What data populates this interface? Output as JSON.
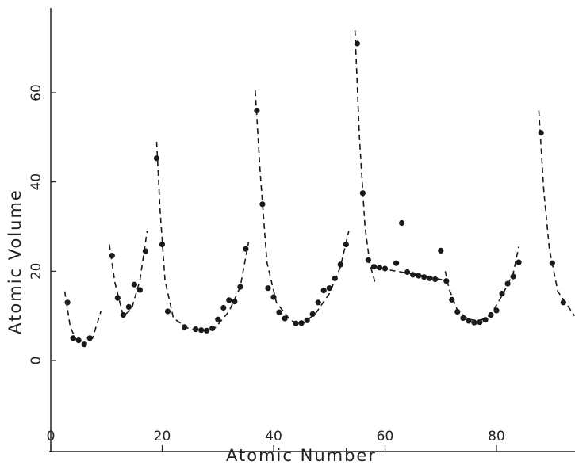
{
  "chart_data": {
    "type": "scatter",
    "title": "",
    "xlabel": "Atomic Number",
    "ylabel": "Atomic Volume",
    "xlim": [
      0,
      94
    ],
    "ylim": [
      0,
      72
    ],
    "grid": false,
    "x_ticks": [
      0,
      20,
      40,
      60,
      80
    ],
    "y_ticks": [
      0,
      20,
      40,
      60
    ],
    "colors": {
      "points": "#1a1a1a",
      "trend": "#1a1a1a",
      "axis": "#222222"
    },
    "points": [
      [
        3,
        13.0
      ],
      [
        4,
        5.0
      ],
      [
        5,
        4.5
      ],
      [
        6,
        3.6
      ],
      [
        7,
        5.0
      ],
      [
        11,
        23.5
      ],
      [
        12,
        14.0
      ],
      [
        13,
        10.2
      ],
      [
        14,
        12.0
      ],
      [
        15,
        17.0
      ],
      [
        16,
        15.8
      ],
      [
        17,
        24.5
      ],
      [
        19,
        45.3
      ],
      [
        20,
        26.0
      ],
      [
        21,
        11.0
      ],
      [
        24,
        7.5
      ],
      [
        26,
        7.0
      ],
      [
        27,
        6.8
      ],
      [
        28,
        6.7
      ],
      [
        29,
        7.2
      ],
      [
        30,
        9.2
      ],
      [
        31,
        11.8
      ],
      [
        32,
        13.5
      ],
      [
        33,
        13.2
      ],
      [
        34,
        16.5
      ],
      [
        35,
        25.0
      ],
      [
        37,
        56.0
      ],
      [
        38,
        35.0
      ],
      [
        39,
        16.2
      ],
      [
        40,
        14.2
      ],
      [
        41,
        10.8
      ],
      [
        42,
        9.4
      ],
      [
        44,
        8.3
      ],
      [
        45,
        8.4
      ],
      [
        46,
        9.0
      ],
      [
        47,
        10.4
      ],
      [
        48,
        13.0
      ],
      [
        49,
        15.7
      ],
      [
        50,
        16.2
      ],
      [
        51,
        18.4
      ],
      [
        52,
        21.5
      ],
      [
        53,
        26.0
      ],
      [
        55,
        71.0
      ],
      [
        56,
        37.5
      ],
      [
        57,
        22.5
      ],
      [
        58,
        21.0
      ],
      [
        59,
        20.8
      ],
      [
        60,
        20.6
      ],
      [
        62,
        21.8
      ],
      [
        63,
        30.8
      ],
      [
        64,
        19.8
      ],
      [
        65,
        19.2
      ],
      [
        66,
        19.0
      ],
      [
        67,
        18.7
      ],
      [
        68,
        18.4
      ],
      [
        69,
        18.2
      ],
      [
        70,
        24.6
      ],
      [
        71,
        17.8
      ],
      [
        72,
        13.6
      ],
      [
        73,
        10.9
      ],
      [
        74,
        9.5
      ],
      [
        75,
        8.9
      ],
      [
        76,
        8.5
      ],
      [
        77,
        8.6
      ],
      [
        78,
        9.1
      ],
      [
        79,
        10.2
      ],
      [
        80,
        11.2
      ],
      [
        81,
        15.0
      ],
      [
        82,
        17.2
      ],
      [
        83,
        18.8
      ],
      [
        84,
        22.0
      ],
      [
        88,
        51.0
      ],
      [
        90,
        21.8
      ],
      [
        92,
        13.0
      ]
    ],
    "trend_segments": [
      [
        [
          2.5,
          15.5
        ],
        [
          3.5,
          7.5
        ],
        [
          4.5,
          4.8
        ],
        [
          6,
          3.6
        ],
        [
          7.5,
          5.0
        ],
        [
          9,
          11.0
        ]
      ],
      [
        [
          10.5,
          26.0
        ],
        [
          11.5,
          17.5
        ],
        [
          13,
          10.0
        ],
        [
          14.5,
          11.5
        ],
        [
          16,
          18.0
        ],
        [
          17.3,
          29.0
        ]
      ],
      [
        [
          19,
          49.0
        ],
        [
          19.6,
          34.0
        ],
        [
          20.5,
          18.0
        ],
        [
          22,
          9.5
        ],
        [
          24.5,
          7.3
        ],
        [
          27,
          6.5
        ],
        [
          29.5,
          7.3
        ],
        [
          32,
          11.0
        ],
        [
          34,
          16.5
        ],
        [
          35.5,
          26.5
        ]
      ],
      [
        [
          36.7,
          60.5
        ],
        [
          37.6,
          42.0
        ],
        [
          38.8,
          22.0
        ],
        [
          40.5,
          13.0
        ],
        [
          43,
          9.0
        ],
        [
          45,
          8.0
        ],
        [
          47.5,
          10.5
        ],
        [
          50,
          15.0
        ],
        [
          52,
          21.0
        ],
        [
          53.5,
          29.0
        ]
      ],
      [
        [
          54.6,
          74.0
        ],
        [
          55.4,
          50.0
        ],
        [
          56.4,
          30.0
        ],
        [
          57.3,
          21.5
        ],
        [
          58.2,
          17.5
        ]
      ],
      [
        [
          57.5,
          21.0
        ],
        [
          62,
          20.0
        ],
        [
          66,
          19.2
        ],
        [
          70.5,
          18.0
        ]
      ],
      [
        [
          70.8,
          20.0
        ],
        [
          71.5,
          16.0
        ],
        [
          73,
          11.2
        ],
        [
          75,
          9.2
        ],
        [
          77,
          8.9
        ],
        [
          79,
          10.3
        ],
        [
          81,
          14.5
        ],
        [
          83,
          19.5
        ],
        [
          84,
          25.5
        ]
      ],
      [
        [
          87.6,
          56.0
        ],
        [
          88.5,
          38.0
        ],
        [
          89.5,
          25.0
        ],
        [
          91,
          15.5
        ],
        [
          94,
          10.0
        ]
      ]
    ]
  }
}
